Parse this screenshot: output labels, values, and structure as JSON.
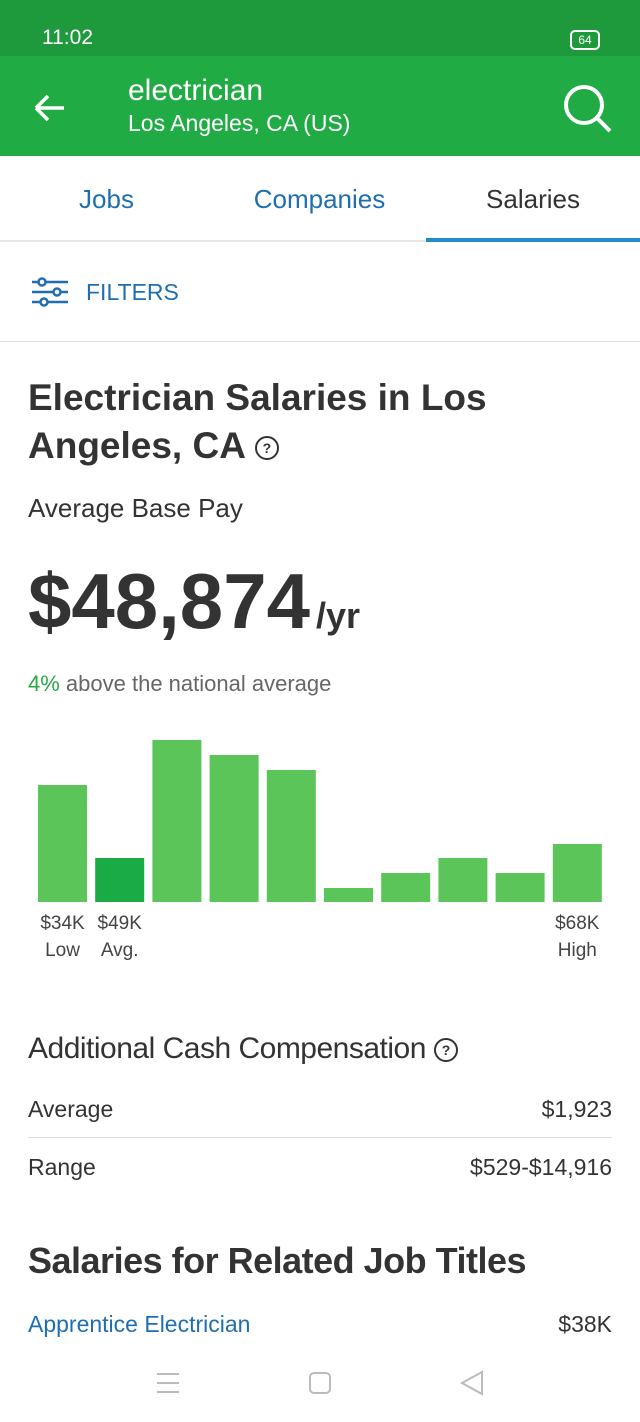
{
  "status_bar": {
    "time": "11:02",
    "battery": "64"
  },
  "header": {
    "query": "electrician",
    "location": "Los Angeles, CA (US)"
  },
  "tabs": [
    "Jobs",
    "Companies",
    "Salaries"
  ],
  "filters": "FILTERS",
  "salary": {
    "title": "Electrician Salaries in Los Angeles, CA",
    "base_pay_label": "Average Base Pay",
    "amount": "$48,874",
    "period": "/yr",
    "comparison_percent": "4%",
    "comparison_text": "above the national average"
  },
  "chart_data": {
    "type": "bar",
    "values": [
      117,
      44,
      162,
      147,
      132,
      14,
      29,
      44,
      29,
      58
    ],
    "colors": [
      "#5cc55a",
      "#1aaa46",
      "#5cc55a",
      "#5cc55a",
      "#5cc55a",
      "#5cc55a",
      "#5cc55a",
      "#5cc55a",
      "#5cc55a",
      "#5cc55a"
    ],
    "categories": [
      "$34K",
      "$49K",
      null,
      null,
      null,
      null,
      null,
      null,
      null,
      "$68K"
    ],
    "captions": [
      "Low",
      "Avg.",
      null,
      null,
      null,
      null,
      null,
      null,
      null,
      "High"
    ]
  },
  "additional": {
    "title": "Additional Cash Compensation",
    "rows": [
      [
        "Average",
        "$1,923"
      ],
      [
        "Range",
        "$529-$14,916"
      ]
    ]
  },
  "related": {
    "title": "Salaries for Related Job Titles",
    "rows": [
      [
        "Apprentice Electrician",
        "$38K"
      ]
    ]
  }
}
